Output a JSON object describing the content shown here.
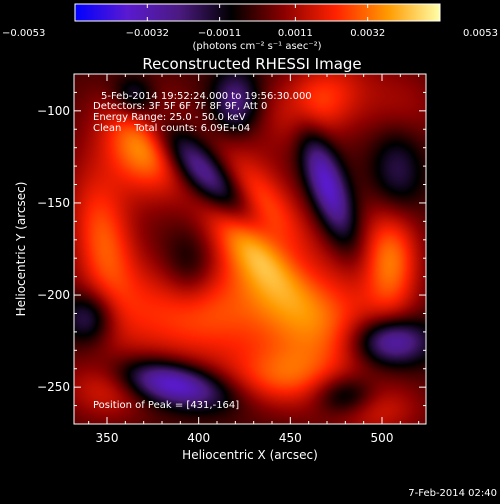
{
  "chart_data": {
    "type": "heatmap",
    "title": "Reconstructed RHESSI Image",
    "xlabel": "Heliocentric X (arcsec)",
    "ylabel": "Heliocentric Y (arcsec)",
    "xlim": [
      332,
      524
    ],
    "ylim": [
      -270,
      -80
    ],
    "x_ticks": [
      350,
      400,
      450,
      500
    ],
    "y_ticks": [
      -100,
      -150,
      -200,
      -250
    ],
    "y_tick_labels": [
      "−100",
      "−150",
      "−200",
      "−250"
    ],
    "colorbar": {
      "range": [
        -0.0053,
        0.0053
      ],
      "tick_values": [
        -0.0053,
        -0.0032,
        -0.0011,
        0.0011,
        0.0032,
        0.0053
      ],
      "tick_labels": [
        "−0.0053",
        "−0.0032",
        "−0.0011",
        "0.0011",
        "0.0032",
        "0.0053"
      ],
      "unit_text": "(photons cm⁻² s⁻¹ asec⁻²)",
      "colormap": [
        "#0000ff",
        "#5a1ad0",
        "#4b1a80",
        "#000000",
        "#8a0000",
        "#ff2200",
        "#ff9a00",
        "#ffffa8"
      ]
    },
    "annotations": [
      "5-Feb-2014 19:52:24.000 to 19:56:30.000",
      "Detectors: 3F 5F 6F 7F 8F 9F, Att 0",
      "Energy Range: 25.0 - 50.0 keV",
      "Clean    Total counts: 6.09E+04"
    ],
    "peak_label": "Position of Peak = [431,-164]",
    "peak": [
      431,
      -164
    ],
    "timestamp": "7-Feb-2014 02:40",
    "blobs": [
      {
        "x": 431,
        "y": -164,
        "sx": 15,
        "sy": 28,
        "rot": 30,
        "amp": 5.3
      },
      {
        "x": 370,
        "y": -118,
        "sx": 15,
        "sy": 20,
        "rot": 25,
        "amp": 3.8
      },
      {
        "x": 348,
        "y": -170,
        "sx": 12,
        "sy": 28,
        "rot": 10,
        "amp": 2.8
      },
      {
        "x": 400,
        "y": -210,
        "sx": 36,
        "sy": 20,
        "rot": 0,
        "amp": 2.8
      },
      {
        "x": 505,
        "y": -178,
        "sx": 11,
        "sy": 24,
        "rot": 0,
        "amp": 3.3
      },
      {
        "x": 468,
        "y": -215,
        "sx": 22,
        "sy": 22,
        "rot": 0,
        "amp": 2.5
      },
      {
        "x": 445,
        "y": -245,
        "sx": 22,
        "sy": 12,
        "rot": 0,
        "amp": 2.2
      },
      {
        "x": 465,
        "y": -95,
        "sx": 20,
        "sy": 14,
        "rot": 30,
        "amp": 2.6
      },
      {
        "x": 350,
        "y": -250,
        "sx": 16,
        "sy": 12,
        "rot": 0,
        "amp": 1.8
      },
      {
        "x": 495,
        "y": -262,
        "sx": 18,
        "sy": 10,
        "rot": 0,
        "amp": 1.8
      },
      {
        "x": 510,
        "y": -100,
        "sx": 14,
        "sy": 16,
        "rot": 0,
        "amp": 1.2
      },
      {
        "x": 410,
        "y": -140,
        "sx": 8,
        "sy": 35,
        "rot": 45,
        "amp": -4.6
      },
      {
        "x": 470,
        "y": -140,
        "sx": 7,
        "sy": 22,
        "rot": 20,
        "amp": -3.8
      },
      {
        "x": 385,
        "y": -248,
        "sx": 22,
        "sy": 8,
        "rot": -12,
        "amp": -4.3
      },
      {
        "x": 505,
        "y": -225,
        "sx": 14,
        "sy": 9,
        "rot": 0,
        "amp": -3.8
      },
      {
        "x": 480,
        "y": -255,
        "sx": 12,
        "sy": 8,
        "rot": 0,
        "amp": -2.5
      },
      {
        "x": 340,
        "y": -212,
        "sx": 10,
        "sy": 10,
        "rot": 0,
        "amp": -2.5
      },
      {
        "x": 420,
        "y": -95,
        "sx": 9,
        "sy": 12,
        "rot": 0,
        "amp": -2.5
      },
      {
        "x": 508,
        "y": -135,
        "sx": 10,
        "sy": 20,
        "rot": 0,
        "amp": -2.2
      },
      {
        "x": 365,
        "y": -92,
        "sx": 8,
        "sy": 8,
        "rot": 0,
        "amp": -1.8
      },
      {
        "x": 395,
        "y": -185,
        "sx": 10,
        "sy": 14,
        "rot": 0,
        "amp": -1.5
      }
    ]
  }
}
